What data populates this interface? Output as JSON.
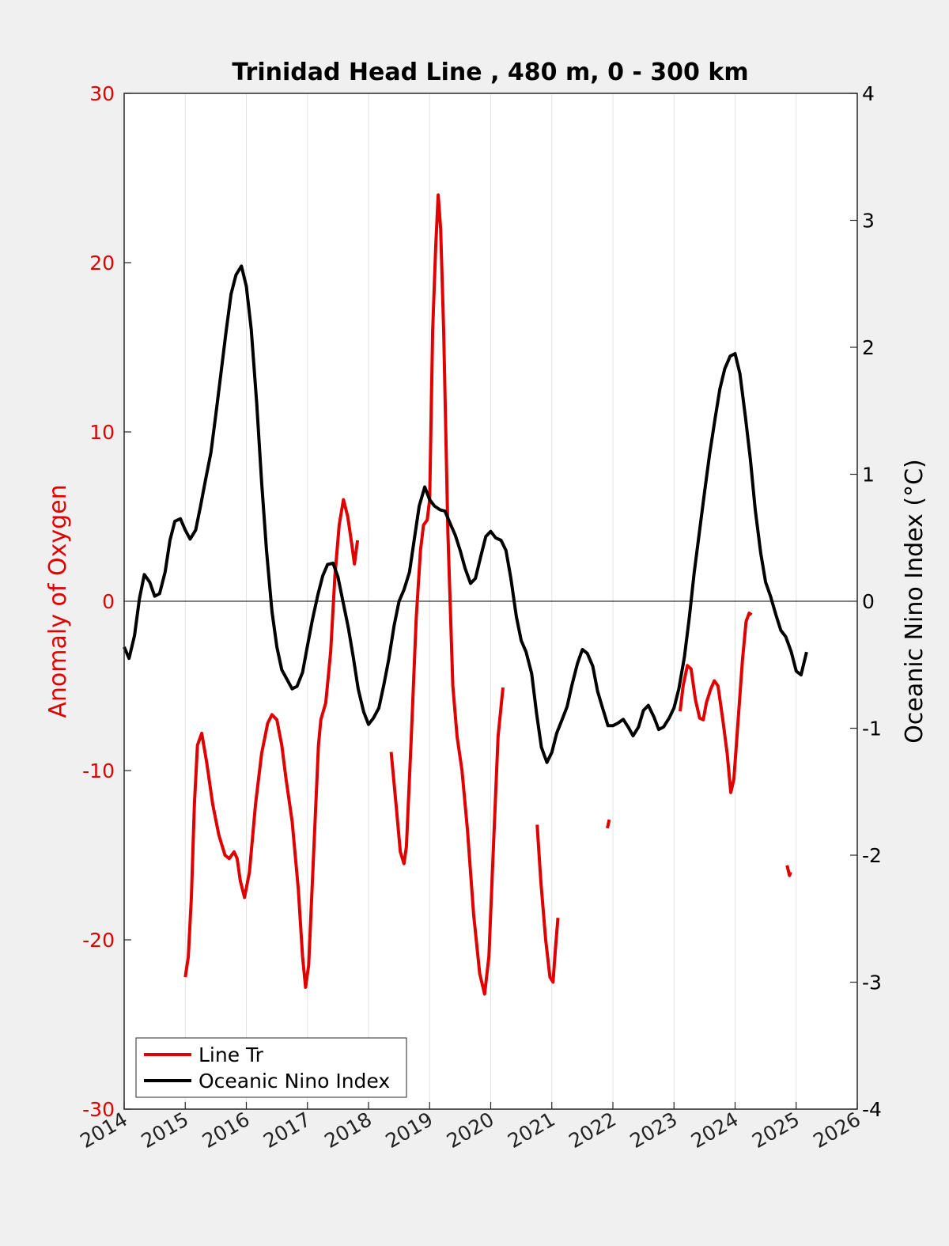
{
  "chart_data": {
    "type": "line",
    "title": "Trinidad Head Line , 480 m, 0 - 300 km",
    "xlim": [
      2014,
      2026
    ],
    "x_ticks": [
      "2014",
      "2015",
      "2016",
      "2017",
      "2018",
      "2019",
      "2020",
      "2021",
      "2022",
      "2023",
      "2024",
      "2025",
      "2026"
    ],
    "y_left": {
      "label": "Anomaly of Oxygen",
      "lim": [
        -30,
        30
      ],
      "ticks": [
        "-30",
        "-20",
        "-10",
        "0",
        "10",
        "20",
        "30"
      ],
      "color": "#e00000"
    },
    "y_right": {
      "label": "Oceanic Nino Index (°C)",
      "lim": [
        -4,
        4
      ],
      "ticks": [
        "-4",
        "-3",
        "-2",
        "-1",
        "0",
        "1",
        "2",
        "3",
        "4"
      ],
      "color": "#000000"
    },
    "grid": "vertical",
    "zero_line": true,
    "legend": {
      "placement": "bottom-left",
      "entries": [
        {
          "label": "Line Tr",
          "color": "#e00000"
        },
        {
          "label": "Oceanic Nino Index",
          "color": "#000000"
        }
      ]
    },
    "series": [
      {
        "name": "Line Tr",
        "axis": "left",
        "color": "#e00000",
        "segments": [
          [
            [
              2015.0,
              -22.2
            ],
            [
              2015.05,
              -21.0
            ],
            [
              2015.1,
              -17.5
            ],
            [
              2015.15,
              -12.0
            ],
            [
              2015.2,
              -8.5
            ],
            [
              2015.27,
              -7.8
            ],
            [
              2015.35,
              -9.5
            ],
            [
              2015.45,
              -12.0
            ],
            [
              2015.55,
              -13.8
            ],
            [
              2015.65,
              -15.0
            ],
            [
              2015.72,
              -15.2
            ],
            [
              2015.8,
              -14.8
            ],
            [
              2015.85,
              -15.2
            ],
            [
              2015.9,
              -16.5
            ],
            [
              2015.97,
              -17.5
            ],
            [
              2016.05,
              -16.0
            ],
            [
              2016.15,
              -12.0
            ],
            [
              2016.25,
              -9.0
            ],
            [
              2016.35,
              -7.2
            ],
            [
              2016.42,
              -6.7
            ],
            [
              2016.5,
              -7.0
            ],
            [
              2016.58,
              -8.5
            ],
            [
              2016.65,
              -10.5
            ],
            [
              2016.75,
              -13.0
            ],
            [
              2016.85,
              -17.0
            ],
            [
              2016.92,
              -21.0
            ],
            [
              2016.97,
              -22.8
            ],
            [
              2017.02,
              -21.5
            ],
            [
              2017.1,
              -15.0
            ],
            [
              2017.18,
              -8.5
            ],
            [
              2017.22,
              -7.0
            ],
            [
              2017.3,
              -6.0
            ],
            [
              2017.38,
              -3.0
            ],
            [
              2017.45,
              1.5
            ],
            [
              2017.52,
              4.5
            ],
            [
              2017.59,
              6.0
            ],
            [
              2017.66,
              5.0
            ],
            [
              2017.72,
              3.5
            ],
            [
              2017.77,
              2.2
            ],
            [
              2017.82,
              3.6
            ]
          ],
          [
            [
              2018.37,
              -8.9
            ],
            [
              2018.45,
              -12.0
            ],
            [
              2018.52,
              -14.8
            ],
            [
              2018.58,
              -15.5
            ],
            [
              2018.62,
              -14.5
            ],
            [
              2018.7,
              -8.0
            ],
            [
              2018.78,
              -1.0
            ],
            [
              2018.85,
              3.0
            ],
            [
              2018.9,
              4.5
            ],
            [
              2018.96,
              4.8
            ],
            [
              2019.0,
              6.0
            ],
            [
              2019.05,
              16.0
            ],
            [
              2019.1,
              21.0
            ],
            [
              2019.14,
              24.0
            ],
            [
              2019.18,
              22.0
            ],
            [
              2019.23,
              16.0
            ],
            [
              2019.3,
              4.0
            ],
            [
              2019.38,
              -5.0
            ],
            [
              2019.45,
              -8.0
            ],
            [
              2019.53,
              -10.0
            ],
            [
              2019.62,
              -13.5
            ],
            [
              2019.72,
              -18.5
            ],
            [
              2019.82,
              -22.0
            ],
            [
              2019.9,
              -23.2
            ],
            [
              2019.97,
              -21.0
            ],
            [
              2020.05,
              -14.0
            ],
            [
              2020.12,
              -8.0
            ],
            [
              2020.2,
              -5.1
            ]
          ],
          [
            [
              2020.76,
              -13.2
            ],
            [
              2020.82,
              -16.5
            ],
            [
              2020.9,
              -20.0
            ],
            [
              2020.97,
              -22.2
            ],
            [
              2021.02,
              -22.5
            ],
            [
              2021.06,
              -20.5
            ],
            [
              2021.1,
              -18.7
            ]
          ],
          [
            [
              2021.91,
              -13.4
            ],
            [
              2021.94,
              -12.9
            ]
          ],
          [
            [
              2023.1,
              -6.5
            ],
            [
              2023.15,
              -5.0
            ],
            [
              2023.22,
              -3.8
            ],
            [
              2023.28,
              -4.0
            ],
            [
              2023.35,
              -5.8
            ],
            [
              2023.42,
              -6.9
            ],
            [
              2023.48,
              -7.0
            ],
            [
              2023.53,
              -6.0
            ],
            [
              2023.6,
              -5.2
            ],
            [
              2023.66,
              -4.7
            ],
            [
              2023.72,
              -5.0
            ],
            [
              2023.8,
              -7.0
            ],
            [
              2023.87,
              -9.0
            ],
            [
              2023.93,
              -11.3
            ],
            [
              2023.98,
              -10.5
            ],
            [
              2024.05,
              -7.0
            ],
            [
              2024.12,
              -3.5
            ],
            [
              2024.18,
              -1.2
            ],
            [
              2024.23,
              -0.7
            ],
            [
              2024.27,
              -0.8
            ]
          ],
          [
            [
              2024.85,
              -15.6
            ],
            [
              2024.89,
              -16.2
            ],
            [
              2024.91,
              -16.0
            ]
          ]
        ]
      },
      {
        "name": "Oceanic Nino Index",
        "axis": "right",
        "color": "#000000",
        "points": [
          [
            2014.0,
            -0.36
          ],
          [
            2014.08,
            -0.45
          ],
          [
            2014.17,
            -0.27
          ],
          [
            2014.25,
            0.02
          ],
          [
            2014.33,
            0.21
          ],
          [
            2014.42,
            0.15
          ],
          [
            2014.5,
            0.04
          ],
          [
            2014.58,
            0.06
          ],
          [
            2014.67,
            0.23
          ],
          [
            2014.75,
            0.48
          ],
          [
            2014.83,
            0.63
          ],
          [
            2014.92,
            0.65
          ],
          [
            2015.0,
            0.56
          ],
          [
            2015.08,
            0.49
          ],
          [
            2015.17,
            0.56
          ],
          [
            2015.25,
            0.75
          ],
          [
            2015.33,
            0.95
          ],
          [
            2015.42,
            1.17
          ],
          [
            2015.5,
            1.47
          ],
          [
            2015.58,
            1.78
          ],
          [
            2015.67,
            2.13
          ],
          [
            2015.75,
            2.42
          ],
          [
            2015.83,
            2.57
          ],
          [
            2015.92,
            2.64
          ],
          [
            2016.0,
            2.48
          ],
          [
            2016.08,
            2.14
          ],
          [
            2016.17,
            1.56
          ],
          [
            2016.25,
            0.94
          ],
          [
            2016.33,
            0.4
          ],
          [
            2016.42,
            -0.08
          ],
          [
            2016.5,
            -0.36
          ],
          [
            2016.58,
            -0.54
          ],
          [
            2016.67,
            -0.62
          ],
          [
            2016.75,
            -0.69
          ],
          [
            2016.83,
            -0.67
          ],
          [
            2016.92,
            -0.56
          ],
          [
            2017.0,
            -0.35
          ],
          [
            2017.08,
            -0.15
          ],
          [
            2017.17,
            0.05
          ],
          [
            2017.25,
            0.2
          ],
          [
            2017.33,
            0.29
          ],
          [
            2017.42,
            0.3
          ],
          [
            2017.5,
            0.19
          ],
          [
            2017.58,
            0.0
          ],
          [
            2017.67,
            -0.21
          ],
          [
            2017.75,
            -0.44
          ],
          [
            2017.83,
            -0.69
          ],
          [
            2017.92,
            -0.87
          ],
          [
            2018.0,
            -0.97
          ],
          [
            2018.08,
            -0.92
          ],
          [
            2018.17,
            -0.84
          ],
          [
            2018.25,
            -0.66
          ],
          [
            2018.33,
            -0.46
          ],
          [
            2018.42,
            -0.19
          ],
          [
            2018.5,
            0.0
          ],
          [
            2018.58,
            0.09
          ],
          [
            2018.67,
            0.23
          ],
          [
            2018.75,
            0.49
          ],
          [
            2018.83,
            0.75
          ],
          [
            2018.92,
            0.9
          ],
          [
            2019.0,
            0.8
          ],
          [
            2019.08,
            0.75
          ],
          [
            2019.17,
            0.72
          ],
          [
            2019.25,
            0.71
          ],
          [
            2019.33,
            0.62
          ],
          [
            2019.42,
            0.52
          ],
          [
            2019.5,
            0.4
          ],
          [
            2019.58,
            0.26
          ],
          [
            2019.67,
            0.14
          ],
          [
            2019.75,
            0.18
          ],
          [
            2019.83,
            0.34
          ],
          [
            2019.92,
            0.51
          ],
          [
            2020.0,
            0.55
          ],
          [
            2020.08,
            0.5
          ],
          [
            2020.17,
            0.48
          ],
          [
            2020.25,
            0.4
          ],
          [
            2020.33,
            0.18
          ],
          [
            2020.42,
            -0.12
          ],
          [
            2020.5,
            -0.31
          ],
          [
            2020.58,
            -0.4
          ],
          [
            2020.67,
            -0.57
          ],
          [
            2020.75,
            -0.88
          ],
          [
            2020.83,
            -1.15
          ],
          [
            2020.92,
            -1.27
          ],
          [
            2021.0,
            -1.19
          ],
          [
            2021.08,
            -1.04
          ],
          [
            2021.17,
            -0.93
          ],
          [
            2021.25,
            -0.83
          ],
          [
            2021.33,
            -0.66
          ],
          [
            2021.42,
            -0.49
          ],
          [
            2021.5,
            -0.38
          ],
          [
            2021.58,
            -0.41
          ],
          [
            2021.67,
            -0.51
          ],
          [
            2021.75,
            -0.71
          ],
          [
            2021.83,
            -0.84
          ],
          [
            2021.92,
            -0.98
          ],
          [
            2022.0,
            -0.98
          ],
          [
            2022.08,
            -0.96
          ],
          [
            2022.17,
            -0.93
          ],
          [
            2022.25,
            -0.99
          ],
          [
            2022.33,
            -1.06
          ],
          [
            2022.42,
            -0.99
          ],
          [
            2022.5,
            -0.86
          ],
          [
            2022.58,
            -0.82
          ],
          [
            2022.67,
            -0.91
          ],
          [
            2022.75,
            -1.01
          ],
          [
            2022.83,
            -0.99
          ],
          [
            2022.92,
            -0.92
          ],
          [
            2023.0,
            -0.84
          ],
          [
            2023.08,
            -0.69
          ],
          [
            2023.17,
            -0.44
          ],
          [
            2023.25,
            -0.13
          ],
          [
            2023.33,
            0.22
          ],
          [
            2023.42,
            0.56
          ],
          [
            2023.5,
            0.86
          ],
          [
            2023.58,
            1.15
          ],
          [
            2023.67,
            1.43
          ],
          [
            2023.75,
            1.67
          ],
          [
            2023.83,
            1.83
          ],
          [
            2023.92,
            1.93
          ],
          [
            2024.0,
            1.95
          ],
          [
            2024.08,
            1.79
          ],
          [
            2024.17,
            1.45
          ],
          [
            2024.25,
            1.12
          ],
          [
            2024.33,
            0.72
          ],
          [
            2024.42,
            0.38
          ],
          [
            2024.5,
            0.15
          ],
          [
            2024.58,
            0.04
          ],
          [
            2024.67,
            -0.11
          ],
          [
            2024.75,
            -0.23
          ],
          [
            2024.83,
            -0.28
          ],
          [
            2024.92,
            -0.4
          ],
          [
            2025.0,
            -0.55
          ],
          [
            2025.08,
            -0.58
          ],
          [
            2025.17,
            -0.4
          ]
        ]
      }
    ]
  }
}
